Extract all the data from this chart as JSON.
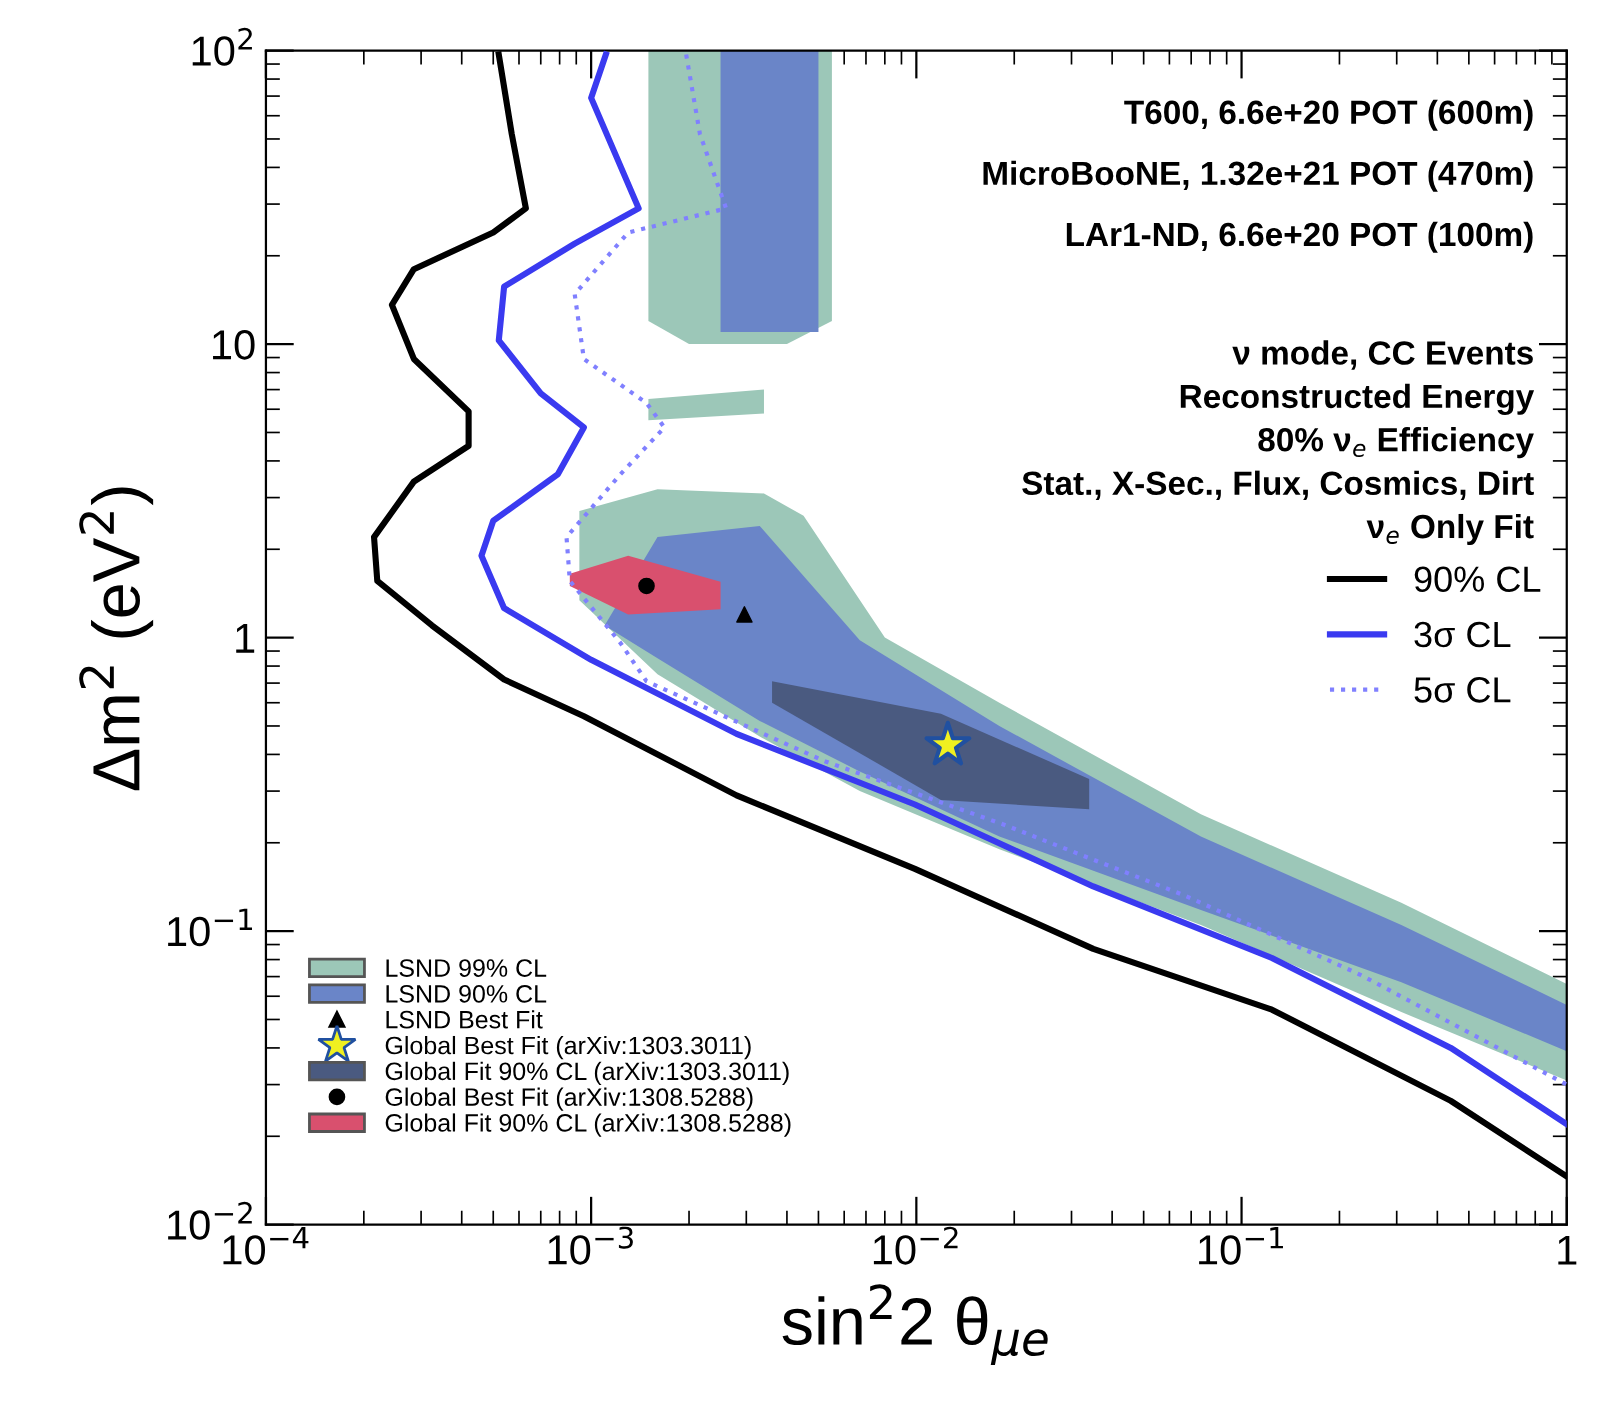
{
  "chart_data": {
    "type": "line",
    "xlabel": "sin$^{2}$2 θ$_{μe}$",
    "ylabel": "Δm$^{2}$ (eV$^{2}$)",
    "log": "xy",
    "xlim": [
      0.0001,
      1
    ],
    "ylim": [
      0.01,
      100
    ],
    "xticks": [
      {
        "value": 0.0001,
        "label": "10$^{−4}$"
      },
      {
        "value": 0.001,
        "label": "10$^{−3}$"
      },
      {
        "value": 0.01,
        "label": "10$^{−2}$"
      },
      {
        "value": 0.1,
        "label": "10$^{−1}$"
      },
      1
    ],
    "yticks": [
      {
        "value": 0.01,
        "label": "10$^{−2}$"
      },
      {
        "value": 0.1,
        "label": "10$^{−1}$"
      },
      1,
      10,
      {
        "value": 100,
        "label": "10$^{2}$"
      }
    ],
    "grid": false,
    "legend": "bottom left",
    "annotations": [
      "T600, 6.6e+20 POT (600m)",
      "MicroBooNE, 1.32e+21 POT (470m)",
      "LAr1-ND, 6.6e+20 POT (100m)",
      "ν mode, CC Events",
      "Reconstructed Energy",
      "80% ν$_{e}$ Efficiency",
      "Stat., X-Sec., Flux, Cosmics, Dirt",
      "ν$_{e}$ Only Fit"
    ],
    "series": [
      {
        "type": "area",
        "name": "LSND 99% CL",
        "color": "#9cc7b8",
        "x": [
          0.00092,
          0.0016,
          0.0034,
          0.0045,
          0.008,
          0.018,
          0.075,
          0.31,
          1,
          1,
          0.31,
          0.075,
          0.018,
          0.0067,
          0.0033,
          0.0016,
          0.00092
        ],
        "values": [
          2.7,
          3.2,
          3.1,
          2.6,
          1.0,
          0.6,
          0.25,
          0.125,
          0.066,
          0.031,
          0.053,
          0.105,
          0.19,
          0.3,
          0.46,
          0.75,
          1.34
        ]
      },
      {
        "type": "area",
        "color": "#9cc7b8",
        "x": [
          0.0015,
          0.0055,
          0.0055,
          0.004,
          0.002,
          0.0015
        ],
        "values": [
          100,
          100,
          12,
          10,
          10,
          12
        ]
      },
      {
        "type": "area",
        "color": "#9cc7b8",
        "x": [
          0.0015,
          0.0034,
          0.0034,
          0.0015
        ],
        "values": [
          6.5,
          7,
          5.8,
          5.5
        ]
      },
      {
        "type": "area",
        "name": "LSND 90% CL",
        "color": "#6a85c8",
        "x": [
          0.0016,
          0.0033,
          0.0067,
          0.018,
          0.075,
          0.31,
          1,
          1,
          0.31,
          0.075,
          0.018,
          0.0067,
          0.0033,
          0.0016,
          0.0011
        ],
        "values": [
          2.2,
          2.4,
          0.98,
          0.5,
          0.21,
          0.105,
          0.056,
          0.039,
          0.067,
          0.118,
          0.21,
          0.35,
          0.52,
          0.85,
          1.1
        ]
      },
      {
        "type": "area",
        "color": "#6a85c8",
        "x": [
          0.0025,
          0.005,
          0.005,
          0.0025
        ],
        "values": [
          100,
          100,
          11,
          11
        ]
      },
      {
        "type": "scatter",
        "name": "LSND Best Fit",
        "color": "#000000",
        "marker": "triangle",
        "x": [
          0.00296
        ],
        "values": [
          1.2
        ]
      },
      {
        "type": "scatter",
        "name": "Global Best Fit (arXiv:1303.3011)",
        "color": "#f0f020",
        "marker": "star",
        "x": [
          0.0125
        ],
        "values": [
          0.43
        ]
      },
      {
        "type": "area",
        "name": "Global Fit 90% CL (arXiv:1303.3011)",
        "color": "#4a5a80",
        "x": [
          0.0036,
          0.0119,
          0.034,
          0.034,
          0.0119,
          0.0036
        ],
        "values": [
          0.71,
          0.55,
          0.33,
          0.26,
          0.28,
          0.6
        ]
      },
      {
        "type": "scatter",
        "name": "Global Best Fit (arXiv:1308.5288)",
        "color": "#000000",
        "marker": "circle",
        "x": [
          0.00148
        ],
        "values": [
          1.5
        ]
      },
      {
        "type": "area",
        "name": "Global Fit 90% CL (arXiv:1308.5288)",
        "color": "#d9506e",
        "x": [
          0.00086,
          0.0013,
          0.0025,
          0.0025,
          0.0013,
          0.00086
        ],
        "values": [
          1.65,
          1.9,
          1.55,
          1.25,
          1.2,
          1.5
        ]
      },
      {
        "type": "line",
        "name": "90% CL",
        "color": "#000000",
        "line_style": "solid",
        "x": [
          0.00052,
          0.00057,
          0.00063,
          0.0005,
          0.000285,
          0.000244,
          0.000285,
          0.00042,
          0.00042,
          0.000285,
          0.000215,
          0.00022,
          0.000324,
          0.00054,
          0.00095,
          0.0028,
          0.0099,
          0.035,
          0.124,
          0.44,
          1.0
        ],
        "values": [
          97,
          52,
          29,
          24,
          18,
          13.6,
          8.9,
          5.9,
          4.5,
          3.4,
          2.2,
          1.56,
          1.1,
          0.72,
          0.54,
          0.29,
          0.163,
          0.087,
          0.054,
          0.0264,
          0.0146
        ]
      },
      {
        "type": "line",
        "name": "3σ CL",
        "color": "#3a3af0",
        "line_style": "solid",
        "x": [
          0.00111,
          0.001,
          0.0014,
          0.00089,
          0.00054,
          0.00052,
          0.0007,
          0.00095,
          0.00079,
          0.0005,
          0.00046,
          0.00054,
          0.001,
          0.0028,
          0.0099,
          0.035,
          0.124,
          0.44,
          1.0
        ],
        "values": [
          97,
          69,
          29,
          22,
          15.7,
          10.3,
          6.8,
          5.2,
          3.6,
          2.5,
          1.9,
          1.26,
          0.84,
          0.47,
          0.27,
          0.142,
          0.081,
          0.04,
          0.022
        ]
      },
      {
        "type": "line",
        "name": "5σ CL",
        "color": "#8080ff",
        "line_style": "dotted",
        "x": [
          0.00196,
          0.00216,
          0.0026,
          0.0013,
          0.00089,
          0.00095,
          0.00148,
          0.00168,
          0.00123,
          0.00084,
          0.00086,
          0.00123,
          0.00148,
          0.0052,
          0.0187,
          0.066,
          0.232,
          1.0
        ],
        "values": [
          97,
          52,
          29,
          24,
          14.8,
          8.9,
          6.3,
          5.2,
          3.6,
          2.2,
          1.56,
          0.96,
          0.71,
          0.38,
          0.23,
          0.133,
          0.071,
          0.03
        ]
      }
    ]
  }
}
